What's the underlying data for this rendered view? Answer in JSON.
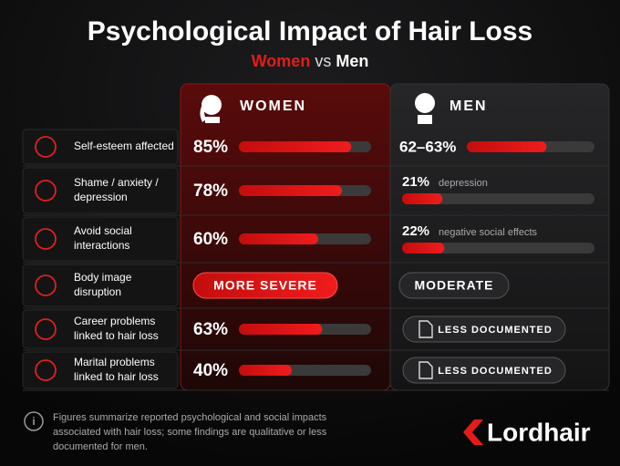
{
  "header": {
    "title": "Psychological Impact of Hair Loss",
    "subtitle": {
      "women": "Women",
      "vs": "vs",
      "men": "Men"
    }
  },
  "columns": {
    "women": "WOMEN",
    "men": "MEN"
  },
  "xlim": [
    0,
    100
  ],
  "rows": [
    {
      "label": [
        "Self-esteem affected"
      ],
      "women": {
        "value": 85,
        "label": "85%"
      },
      "men": {
        "range": [
          62,
          63
        ],
        "label": "62–63%"
      }
    },
    {
      "label": [
        "Shame / anxiety /",
        "depression"
      ],
      "women": {
        "value": 78,
        "label": "78%"
      },
      "men": {
        "value": 21,
        "label": "21%",
        "note": "depression"
      }
    },
    {
      "label": [
        "Avoid social",
        "interactions"
      ],
      "women": {
        "value": 60,
        "label": "60%"
      },
      "men": {
        "value": 22,
        "label": "22%",
        "note": "negative social effects"
      }
    },
    {
      "label": [
        "Body image",
        "disruption"
      ],
      "women": {
        "badge": "MORE SEVERE"
      },
      "men": {
        "badge": "MODERATE"
      }
    },
    {
      "label": [
        "Career problems",
        "linked to hair loss"
      ],
      "women": {
        "value": 63,
        "label": "63%"
      },
      "men": {
        "badge": "LESS DOCUMENTED"
      }
    },
    {
      "label": [
        "Marital problems",
        "linked to hair loss"
      ],
      "women": {
        "value": 40,
        "label": "40%"
      },
      "men": {
        "badge": "LESS DOCUMENTED"
      }
    }
  ],
  "footnote": [
    "Figures summarize reported psychological and social impacts",
    "associated with hair loss; some findings are qualitative or less",
    "documented for men."
  ],
  "logo": "Lordhair"
}
